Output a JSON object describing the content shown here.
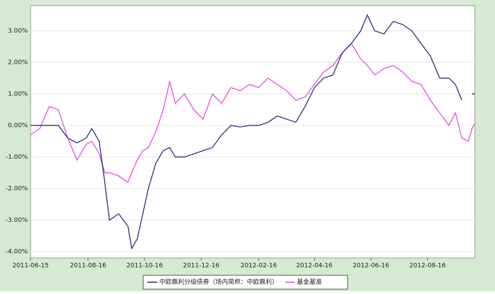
{
  "chart_data": {
    "type": "line",
    "x": [
      "2011-06-15",
      "2011-06-25",
      "2011-07-05",
      "2011-07-15",
      "2011-07-25",
      "2011-08-04",
      "2011-08-14",
      "2011-08-20",
      "2011-08-28",
      "2011-09-03",
      "2011-09-08",
      "2011-09-18",
      "2011-09-28",
      "2011-10-02",
      "2011-10-08",
      "2011-10-14",
      "2011-10-20",
      "2011-10-28",
      "2011-11-05",
      "2011-11-12",
      "2011-11-18",
      "2011-11-28",
      "2011-12-08",
      "2011-12-18",
      "2011-12-28",
      "2012-01-07",
      "2012-01-17",
      "2012-01-27",
      "2012-02-06",
      "2012-02-16",
      "2012-02-26",
      "2012-03-07",
      "2012-03-17",
      "2012-03-27",
      "2012-04-06",
      "2012-04-16",
      "2012-04-26",
      "2012-05-06",
      "2012-05-16",
      "2012-05-26",
      "2012-06-05",
      "2012-06-12",
      "2012-06-20",
      "2012-06-30",
      "2012-07-10",
      "2012-07-20",
      "2012-07-30",
      "2012-08-09",
      "2012-08-19",
      "2012-08-29",
      "2012-09-08",
      "2012-09-15",
      "2012-09-22",
      "2012-09-29",
      "2012-10-03",
      "2012-10-06"
    ],
    "series": [
      {
        "name": "中欧鼎利分级债券（场内简称：中欧鼎利）",
        "color": "#1c1c72",
        "values": [
          0,
          0,
          0,
          0,
          -0.4,
          -0.55,
          -0.4,
          -0.1,
          -0.5,
          -1.8,
          -3.0,
          -2.8,
          -3.2,
          -3.9,
          -3.6,
          -2.8,
          -2.0,
          -1.2,
          -0.8,
          -0.7,
          -1.0,
          -1.0,
          -0.9,
          -0.8,
          -0.7,
          -0.3,
          0.0,
          -0.05,
          0.0,
          0.0,
          0.1,
          0.3,
          0.2,
          0.1,
          0.6,
          1.2,
          1.5,
          1.6,
          2.3,
          2.6,
          3.0,
          3.5,
          3.0,
          2.9,
          3.3,
          3.2,
          3.0,
          2.6,
          2.2,
          1.5,
          1.5,
          1.3,
          0.8,
          null,
          1.0,
          1.0
        ]
      },
      {
        "name": "基金基准",
        "color": "#e040e0",
        "values": [
          -0.3,
          -0.1,
          0.6,
          0.5,
          -0.4,
          -1.1,
          -0.6,
          -0.5,
          -0.9,
          -1.5,
          -1.5,
          -1.6,
          -1.8,
          -1.5,
          -1.1,
          -0.8,
          -0.7,
          -0.2,
          0.5,
          1.4,
          0.7,
          1.0,
          0.5,
          0.2,
          1.0,
          0.7,
          1.2,
          1.1,
          1.3,
          1.2,
          1.5,
          1.3,
          1.1,
          0.8,
          0.9,
          1.3,
          1.7,
          1.9,
          2.3,
          2.6,
          2.1,
          1.9,
          1.6,
          1.8,
          1.9,
          1.7,
          1.4,
          1.3,
          0.8,
          0.4,
          0.0,
          0.4,
          -0.4,
          -0.5,
          -0.1,
          0.05
        ]
      }
    ],
    "xlim": [
      "2011-06-15",
      "2012-10-06"
    ],
    "xticks": [
      "2011-06-15",
      "2011-08-16",
      "2011-10-16",
      "2011-12-16",
      "2012-02-16",
      "2012-04-16",
      "2012-06-16",
      "2012-08-16"
    ],
    "ylim": [
      -4.2,
      3.8
    ],
    "yticks": [
      {
        "value": -4,
        "label": "-4.00%"
      },
      {
        "value": -3,
        "label": "-3.00%"
      },
      {
        "value": -2,
        "label": "-2.00%"
      },
      {
        "value": -1,
        "label": "-1.00%"
      },
      {
        "value": 0,
        "label": "0.00%"
      },
      {
        "value": 1,
        "label": "1.00%"
      },
      {
        "value": 2,
        "label": "2.00%"
      },
      {
        "value": 3,
        "label": "3.00%"
      }
    ],
    "grid": true
  }
}
